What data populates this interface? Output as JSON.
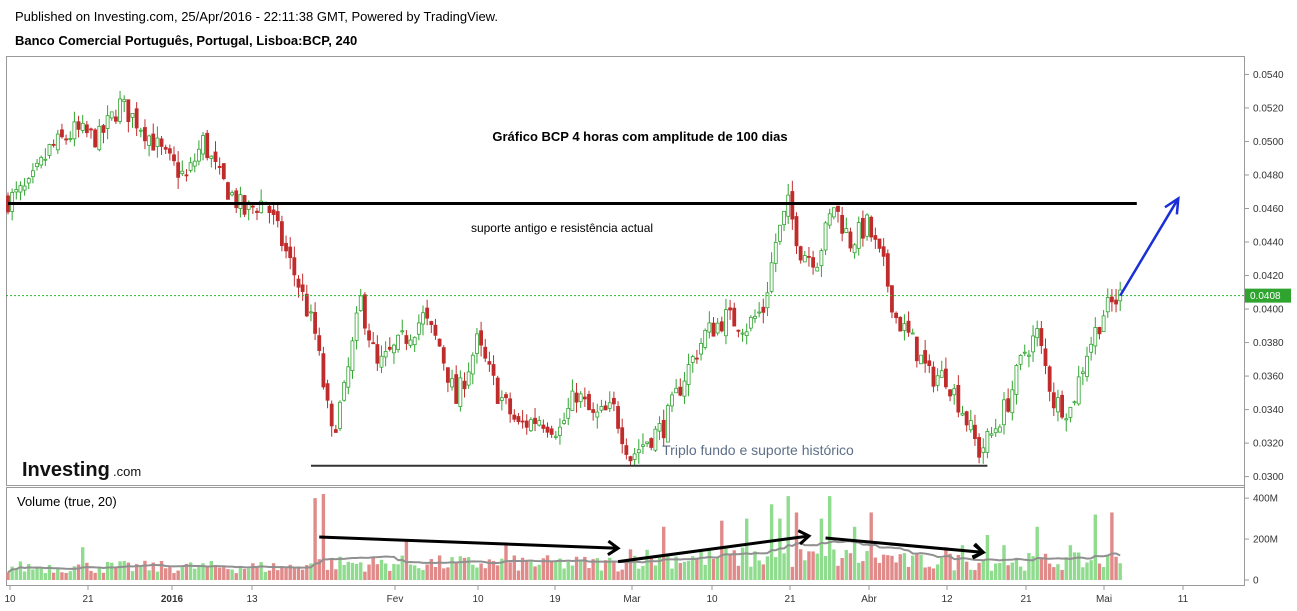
{
  "header": {
    "published": "Published on Investing.com, 25/Apr/2016 - 22:11:38 GMT, Powered by TradingView.",
    "symbol": "Banco Comercial Português, Portugal, Lisboa:BCP, 240"
  },
  "annotations": {
    "title": "Gráfico BCP 4 horas com amplitude de 100 dias",
    "resistance": "suporte antigo e resistência actual",
    "support": "Triplo fundo e suporte histórico"
  },
  "logo": {
    "word": "Investing",
    "suffix": ".com"
  },
  "volume_label": "Volume (true, 20)",
  "colors": {
    "up": "#2fa52f",
    "up_fill": "#ffffff",
    "down": "#c02c2c",
    "down_fill": "#c02c2c",
    "vol_up": "#8fdc8f",
    "vol_down": "#e08a8a",
    "vol_ma": "#909090",
    "price_line": "#2ab52a",
    "trend": "#000000",
    "target": "#1a2fd6"
  },
  "chart_data": [
    {
      "type": "candlestick",
      "title": "Gráfico BCP 4 horas com amplitude de 100 dias",
      "ylim": [
        0.0295,
        0.0551
      ],
      "y_ticks": [
        "0.0300",
        "0.0320",
        "0.0340",
        "0.0360",
        "0.0380",
        "0.0400",
        "0.0420",
        "0.0440",
        "0.0460",
        "0.0480",
        "0.0500",
        "0.0520",
        "0.0540"
      ],
      "x_ticks": [
        "10",
        "21",
        "2016",
        "13",
        "Fev",
        "10",
        "19",
        "Mar",
        "10",
        "21",
        "Abr",
        "12",
        "21",
        "Mai",
        "11"
      ],
      "last_price": "0.0408",
      "close_path": [
        {
          "i": 0,
          "v": 0.0465
        },
        {
          "i": 5,
          "v": 0.0472
        },
        {
          "i": 10,
          "v": 0.0495
        },
        {
          "i": 16,
          "v": 0.0506
        },
        {
          "i": 22,
          "v": 0.0502
        },
        {
          "i": 27,
          "v": 0.0522
        },
        {
          "i": 32,
          "v": 0.051
        },
        {
          "i": 38,
          "v": 0.049
        },
        {
          "i": 43,
          "v": 0.0478
        },
        {
          "i": 47,
          "v": 0.05
        },
        {
          "i": 51,
          "v": 0.0478
        },
        {
          "i": 57,
          "v": 0.0458
        },
        {
          "i": 62,
          "v": 0.0465
        },
        {
          "i": 66,
          "v": 0.044
        },
        {
          "i": 70,
          "v": 0.0415
        },
        {
          "i": 74,
          "v": 0.0385
        },
        {
          "i": 78,
          "v": 0.0325
        },
        {
          "i": 81,
          "v": 0.035
        },
        {
          "i": 85,
          "v": 0.0405
        },
        {
          "i": 89,
          "v": 0.0365
        },
        {
          "i": 94,
          "v": 0.0378
        },
        {
          "i": 100,
          "v": 0.0395
        },
        {
          "i": 104,
          "v": 0.0378
        },
        {
          "i": 108,
          "v": 0.0345
        },
        {
          "i": 113,
          "v": 0.038
        },
        {
          "i": 118,
          "v": 0.035
        },
        {
          "i": 123,
          "v": 0.033
        },
        {
          "i": 128,
          "v": 0.0335
        },
        {
          "i": 133,
          "v": 0.0328
        },
        {
          "i": 137,
          "v": 0.035
        },
        {
          "i": 141,
          "v": 0.0335
        },
        {
          "i": 146,
          "v": 0.034
        },
        {
          "i": 150,
          "v": 0.0312
        },
        {
          "i": 154,
          "v": 0.0322
        },
        {
          "i": 158,
          "v": 0.033
        },
        {
          "i": 163,
          "v": 0.036
        },
        {
          "i": 168,
          "v": 0.0385
        },
        {
          "i": 173,
          "v": 0.0395
        },
        {
          "i": 178,
          "v": 0.039
        },
        {
          "i": 182,
          "v": 0.04
        },
        {
          "i": 185,
          "v": 0.044
        },
        {
          "i": 188,
          "v": 0.0462
        },
        {
          "i": 191,
          "v": 0.0435
        },
        {
          "i": 195,
          "v": 0.043
        },
        {
          "i": 199,
          "v": 0.0462
        },
        {
          "i": 203,
          "v": 0.044
        },
        {
          "i": 207,
          "v": 0.045
        },
        {
          "i": 211,
          "v": 0.0425
        },
        {
          "i": 214,
          "v": 0.0395
        },
        {
          "i": 218,
          "v": 0.038
        },
        {
          "i": 222,
          "v": 0.036
        },
        {
          "i": 226,
          "v": 0.036
        },
        {
          "i": 230,
          "v": 0.034
        },
        {
          "i": 234,
          "v": 0.0315
        },
        {
          "i": 237,
          "v": 0.0325
        },
        {
          "i": 241,
          "v": 0.0345
        },
        {
          "i": 245,
          "v": 0.0375
        },
        {
          "i": 248,
          "v": 0.0385
        },
        {
          "i": 252,
          "v": 0.0345
        },
        {
          "i": 256,
          "v": 0.034
        },
        {
          "i": 260,
          "v": 0.0375
        },
        {
          "i": 264,
          "v": 0.0398
        },
        {
          "i": 268,
          "v": 0.0408
        }
      ],
      "trend_lines": [
        {
          "name": "resistance",
          "from": [
            0,
            0.0463
          ],
          "to": [
            272,
            0.0463
          ]
        },
        {
          "name": "support",
          "from": [
            73,
            0.03065
          ],
          "to": [
            236,
            0.03065
          ]
        }
      ],
      "target_arrow": {
        "from": [
          268,
          0.0408
        ],
        "to": [
          282,
          0.0466
        ]
      }
    },
    {
      "type": "bar",
      "title": "Volume (true, 20)",
      "ylim": [
        0,
        430
      ],
      "y_ticks": [
        "0",
        "200M",
        "400M"
      ],
      "spikes": [
        {
          "i": 18,
          "v": 160
        },
        {
          "i": 74,
          "v": 400
        },
        {
          "i": 76,
          "v": 420
        },
        {
          "i": 96,
          "v": 200
        },
        {
          "i": 120,
          "v": 180
        },
        {
          "i": 150,
          "v": 150
        },
        {
          "i": 158,
          "v": 260
        },
        {
          "i": 172,
          "v": 290
        },
        {
          "i": 178,
          "v": 300
        },
        {
          "i": 184,
          "v": 370
        },
        {
          "i": 186,
          "v": 300
        },
        {
          "i": 188,
          "v": 410
        },
        {
          "i": 190,
          "v": 330
        },
        {
          "i": 196,
          "v": 300
        },
        {
          "i": 198,
          "v": 410
        },
        {
          "i": 204,
          "v": 260
        },
        {
          "i": 208,
          "v": 330
        },
        {
          "i": 226,
          "v": 160
        },
        {
          "i": 230,
          "v": 170
        },
        {
          "i": 236,
          "v": 220
        },
        {
          "i": 240,
          "v": 170
        },
        {
          "i": 248,
          "v": 260
        },
        {
          "i": 256,
          "v": 170
        },
        {
          "i": 262,
          "v": 320
        },
        {
          "i": 266,
          "v": 330
        }
      ],
      "trend_arrows": [
        {
          "from": [
            75,
            210
          ],
          "to": [
            147,
            155
          ]
        },
        {
          "from": [
            147,
            90
          ],
          "to": [
            193,
            215
          ]
        },
        {
          "from": [
            197,
            205
          ],
          "to": [
            235,
            135
          ]
        },
        {
          "from": [
            229,
            160
          ],
          "to": [
            235,
            135
          ]
        }
      ]
    }
  ]
}
